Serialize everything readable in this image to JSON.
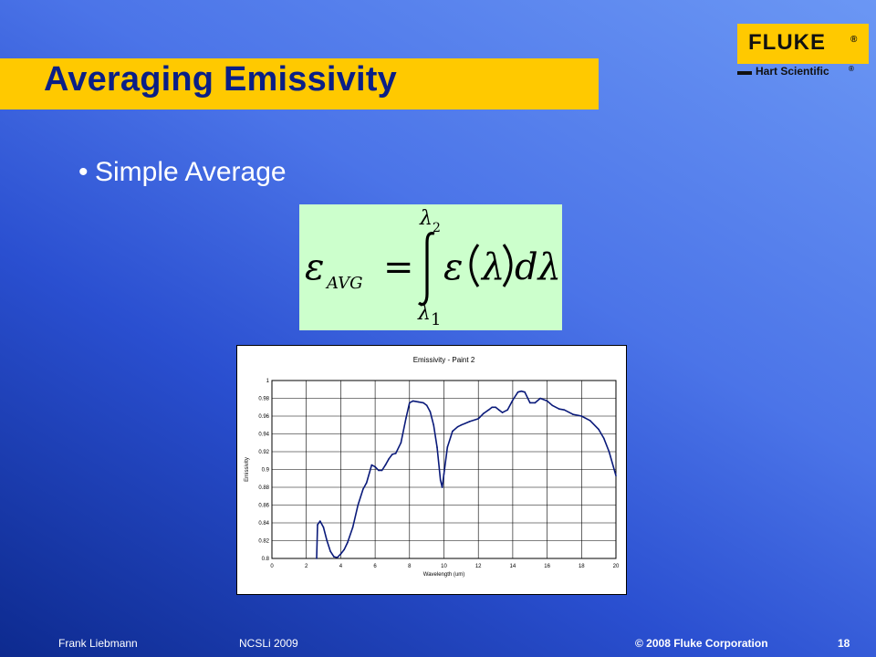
{
  "slide": {
    "title": "Averaging Emissivity",
    "bullet": "Simple Average"
  },
  "logo": {
    "brand": "FLUKE",
    "registered": "®",
    "sub_brand": "Hart Scientific",
    "sub_registered": "®"
  },
  "formula": {
    "lhs_symbol": "ε",
    "lhs_subscript": "AVG",
    "equals": "=",
    "upper_limit": "λ",
    "upper_limit_index": "2",
    "lower_limit": "λ",
    "lower_limit_index": "1",
    "integrand_symbol": "ε",
    "integrand_variable": "λ",
    "differential": "dλ"
  },
  "footer": {
    "author": "Frank Liebmann",
    "event": "NCSLi 2009",
    "copyright": "© 2008 Fluke Corporation",
    "page": "18"
  },
  "colors": {
    "title_bar": "#ffc900",
    "title_text": "#0a1f86",
    "formula_bg": "#ccffcc",
    "series": "#0a1a7a"
  },
  "chart_data": {
    "type": "line",
    "title": "Emissivity - Paint 2",
    "xlabel": "Wavelength (um)",
    "ylabel": "Emissivity",
    "xlim": [
      0,
      20
    ],
    "ylim": [
      0.8,
      1.0
    ],
    "x_ticks": [
      "0",
      "2",
      "4",
      "6",
      "8",
      "10",
      "12",
      "14",
      "16",
      "18",
      "20"
    ],
    "y_ticks": [
      "0.8",
      "0.82",
      "0.84",
      "0.86",
      "0.88",
      "0.9",
      "0.92",
      "0.94",
      "0.96",
      "0.98",
      "1"
    ],
    "grid": true,
    "series": [
      {
        "x": [
          2.6,
          2.65,
          2.8,
          3.0,
          3.2,
          3.4,
          3.6,
          3.8,
          4.0,
          4.2,
          4.4,
          4.7,
          5.0,
          5.3,
          5.5,
          5.8,
          6.0,
          6.2,
          6.4,
          6.6,
          6.8,
          7.0,
          7.2,
          7.5,
          7.8,
          8.0,
          8.2,
          8.5,
          8.8,
          9.0,
          9.2,
          9.4,
          9.6,
          9.8,
          9.9,
          10.0,
          10.2,
          10.5,
          10.8,
          11.0,
          11.5,
          12.0,
          12.3,
          12.6,
          12.8,
          13.0,
          13.2,
          13.4,
          13.7,
          14.0,
          14.3,
          14.5,
          14.7,
          15.0,
          15.3,
          15.6,
          16.0,
          16.3,
          16.7,
          17.0,
          17.5,
          18.0,
          18.5,
          19.0,
          19.3,
          19.6,
          20.0
        ],
        "y": [
          0.8,
          0.838,
          0.842,
          0.835,
          0.82,
          0.808,
          0.802,
          0.801,
          0.805,
          0.81,
          0.818,
          0.835,
          0.86,
          0.878,
          0.885,
          0.905,
          0.903,
          0.899,
          0.899,
          0.905,
          0.912,
          0.917,
          0.918,
          0.93,
          0.958,
          0.975,
          0.977,
          0.976,
          0.975,
          0.972,
          0.965,
          0.95,
          0.925,
          0.888,
          0.88,
          0.895,
          0.925,
          0.943,
          0.948,
          0.95,
          0.954,
          0.957,
          0.963,
          0.967,
          0.97,
          0.97,
          0.967,
          0.964,
          0.967,
          0.978,
          0.987,
          0.988,
          0.987,
          0.975,
          0.975,
          0.98,
          0.977,
          0.972,
          0.968,
          0.967,
          0.962,
          0.96,
          0.955,
          0.945,
          0.935,
          0.92,
          0.893
        ]
      }
    ]
  }
}
